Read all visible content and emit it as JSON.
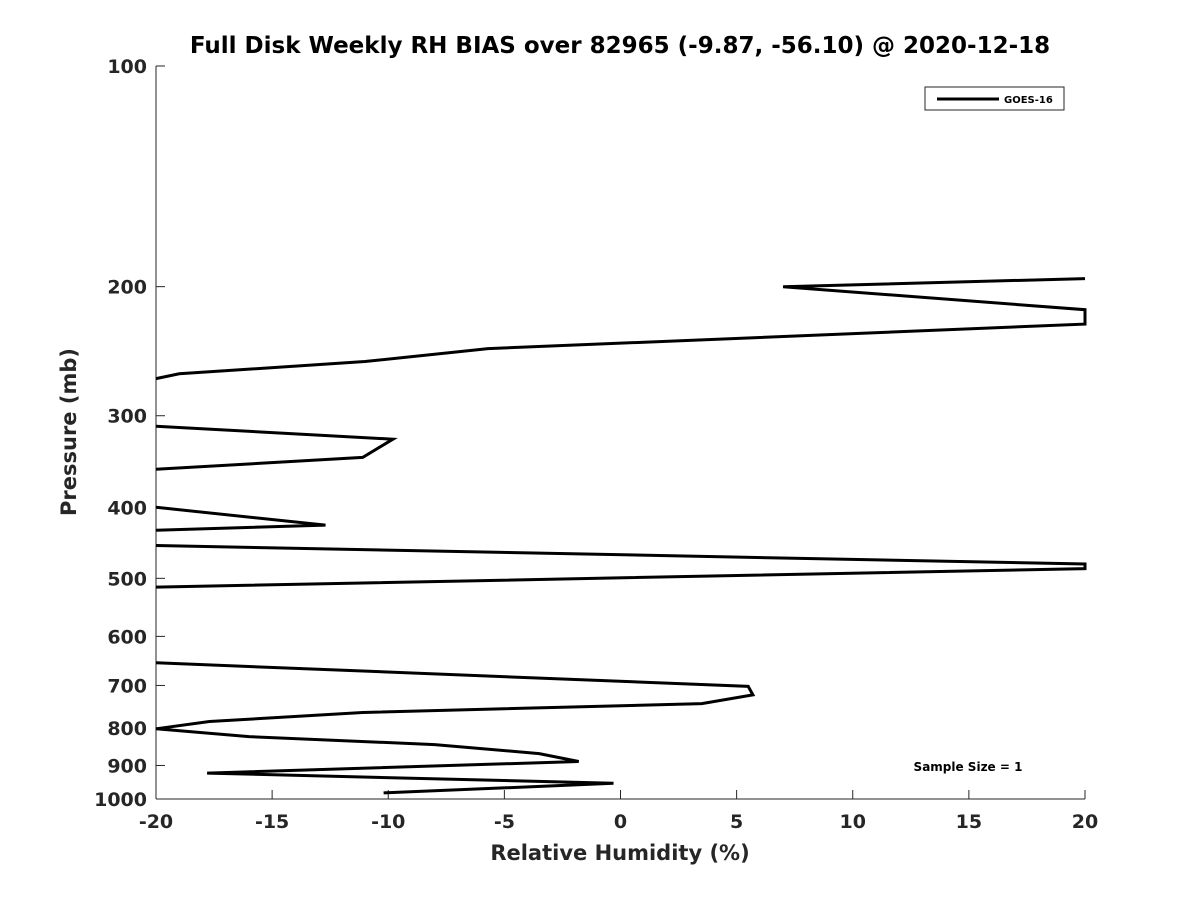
{
  "chart_data": {
    "type": "line",
    "title": "Full Disk Weekly RH BIAS over 82965 (-9.87, -56.10) @ 2020-12-18",
    "xlabel": "Relative Humidity (%)",
    "ylabel": "Pressure (mb)",
    "xlim": [
      -20,
      20
    ],
    "ylim": [
      100,
      1000
    ],
    "y_scale": "log",
    "y_reversed": true,
    "x_ticks": [
      -20,
      -15,
      -10,
      -5,
      0,
      5,
      10,
      15,
      20
    ],
    "x_tick_labels": [
      "-20",
      "-15",
      "-10",
      "-5",
      "0",
      "5",
      "10",
      "15",
      "20"
    ],
    "y_ticks": [
      100,
      200,
      300,
      400,
      500,
      600,
      700,
      800,
      900,
      1000
    ],
    "y_tick_labels": [
      "100",
      "200",
      "300",
      "400",
      "500",
      "600",
      "700",
      "800",
      "900",
      "1000"
    ],
    "grid": false,
    "legend": {
      "position": "top-right"
    },
    "annotation": "Sample Size = 1",
    "series": [
      {
        "name": "GOES-16",
        "color": "#000000",
        "points": [
          {
            "x": 20,
            "p": 195
          },
          {
            "x": 7,
            "p": 200
          },
          {
            "x": 20,
            "p": 215
          },
          {
            "x": 20,
            "p": 225
          },
          {
            "x": -5.7,
            "p": 243
          },
          {
            "x": -11,
            "p": 253
          },
          {
            "x": -19,
            "p": 263
          },
          {
            "x": -20,
            "p": 267
          },
          {
            "x": null,
            "p": null
          },
          {
            "x": -20,
            "p": 310
          },
          {
            "x": -9.8,
            "p": 323
          },
          {
            "x": -11.1,
            "p": 342
          },
          {
            "x": -20,
            "p": 355
          },
          {
            "x": null,
            "p": null
          },
          {
            "x": -20,
            "p": 400
          },
          {
            "x": -12.7,
            "p": 423
          },
          {
            "x": -20,
            "p": 430
          },
          {
            "x": null,
            "p": null
          },
          {
            "x": -20,
            "p": 451
          },
          {
            "x": 20,
            "p": 478
          },
          {
            "x": 20,
            "p": 485
          },
          {
            "x": -20,
            "p": 514
          },
          {
            "x": null,
            "p": null
          },
          {
            "x": -20,
            "p": 652
          },
          {
            "x": 5.5,
            "p": 702
          },
          {
            "x": 5.7,
            "p": 721
          },
          {
            "x": 3.5,
            "p": 741
          },
          {
            "x": -11.1,
            "p": 762
          },
          {
            "x": -17.7,
            "p": 784
          },
          {
            "x": -20,
            "p": 802
          },
          {
            "x": -16,
            "p": 822
          },
          {
            "x": -8,
            "p": 843
          },
          {
            "x": -3.5,
            "p": 867
          },
          {
            "x": -1.8,
            "p": 889
          },
          {
            "x": -17.8,
            "p": 922
          },
          {
            "x": -0.3,
            "p": 952
          },
          {
            "x": -10.2,
            "p": 981
          }
        ]
      }
    ]
  }
}
